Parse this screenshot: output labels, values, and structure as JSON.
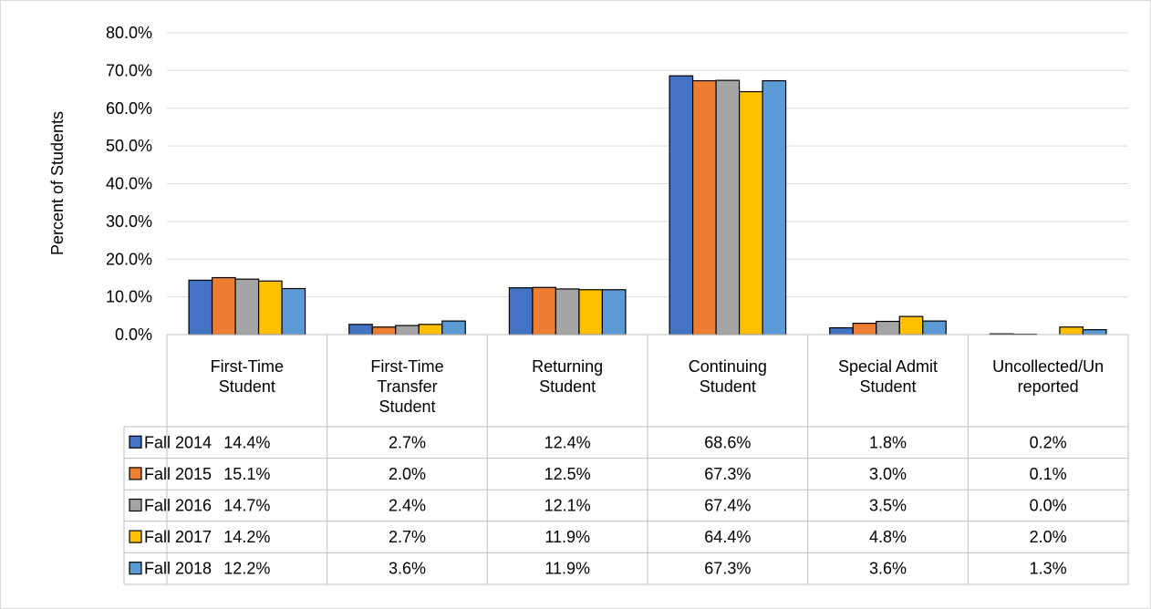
{
  "chart_data": {
    "type": "bar",
    "ylabel": "Percent of Students",
    "xlabel": "",
    "ylim": [
      0,
      80
    ],
    "y_ticks": [
      "0.0%",
      "10.0%",
      "20.0%",
      "30.0%",
      "40.0%",
      "50.0%",
      "60.0%",
      "70.0%",
      "80.0%"
    ],
    "grid": true,
    "legend": "data-table",
    "categories": [
      [
        "First-Time",
        "Student"
      ],
      [
        "First-Time",
        "Transfer",
        "Student"
      ],
      [
        "Returning",
        "Student"
      ],
      [
        "Continuing",
        "Student"
      ],
      [
        "Special Admit",
        "Student"
      ],
      [
        "Uncollected/Un",
        "reported"
      ]
    ],
    "series": [
      {
        "name": "Fall 2014",
        "color": "#4472c4",
        "values": [
          14.4,
          2.7,
          12.4,
          68.6,
          1.8,
          0.2
        ],
        "labels": [
          "14.4%",
          "2.7%",
          "12.4%",
          "68.6%",
          "1.8%",
          "0.2%"
        ]
      },
      {
        "name": "Fall 2015",
        "color": "#ed7d31",
        "values": [
          15.1,
          2.0,
          12.5,
          67.3,
          3.0,
          0.1
        ],
        "labels": [
          "15.1%",
          "2.0%",
          "12.5%",
          "67.3%",
          "3.0%",
          "0.1%"
        ]
      },
      {
        "name": "Fall 2016",
        "color": "#a5a5a5",
        "values": [
          14.7,
          2.4,
          12.1,
          67.4,
          3.5,
          0.0
        ],
        "labels": [
          "14.7%",
          "2.4%",
          "12.1%",
          "67.4%",
          "3.5%",
          "0.0%"
        ]
      },
      {
        "name": "Fall 2017",
        "color": "#ffc000",
        "values": [
          14.2,
          2.7,
          11.9,
          64.4,
          4.8,
          2.0
        ],
        "labels": [
          "14.2%",
          "2.7%",
          "11.9%",
          "64.4%",
          "4.8%",
          "2.0%"
        ]
      },
      {
        "name": "Fall 2018",
        "color": "#5b9bd5",
        "values": [
          12.2,
          3.6,
          11.9,
          67.3,
          3.6,
          1.3
        ],
        "labels": [
          "12.2%",
          "3.6%",
          "11.9%",
          "67.3%",
          "3.6%",
          "1.3%"
        ]
      }
    ]
  }
}
